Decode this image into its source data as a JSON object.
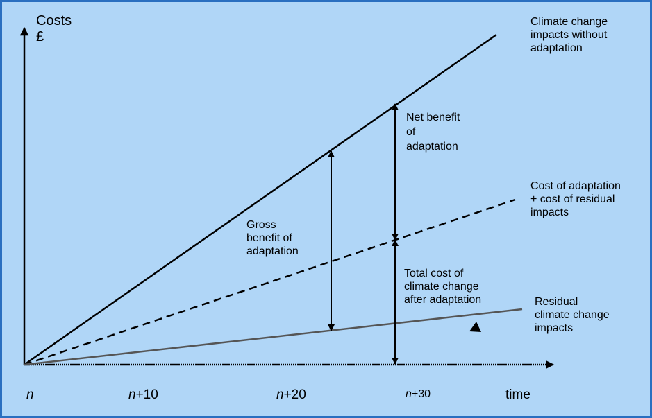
{
  "axes": {
    "y_label_line1": "Costs",
    "y_label_line2": "£",
    "x_label": "time",
    "x_ticks": [
      {
        "var": "n",
        "suffix": ""
      },
      {
        "var": "n",
        "suffix": "+10"
      },
      {
        "var": "n",
        "suffix": "+20"
      },
      {
        "var": "n",
        "suffix": "+30"
      }
    ]
  },
  "lines": {
    "without_adaptation": {
      "line1": "Climate change",
      "line2": "impacts  without",
      "line3": "adaptation"
    },
    "adaptation_total": {
      "line1": "Cost of adaptation",
      "line2": "+ cost of residual",
      "line3": "impacts"
    },
    "residual": {
      "line1": "Residual",
      "line2": "climate change",
      "line3": "impacts"
    }
  },
  "annotations": {
    "net_benefit": {
      "line1": "Net benefit",
      "line2": "of",
      "line3": "adaptation"
    },
    "gross_benefit": {
      "line1": "Gross",
      "line2": "benefit  of",
      "line3": "adaptation"
    },
    "total_cost": {
      "line1": "Total cost of",
      "line2": "climate change",
      "line3": "after adaptation"
    }
  },
  "colors": {
    "background": "#b0d6f7",
    "border": "#2a6fc0",
    "main_line": "#000000",
    "residual_line": "#555555"
  }
}
